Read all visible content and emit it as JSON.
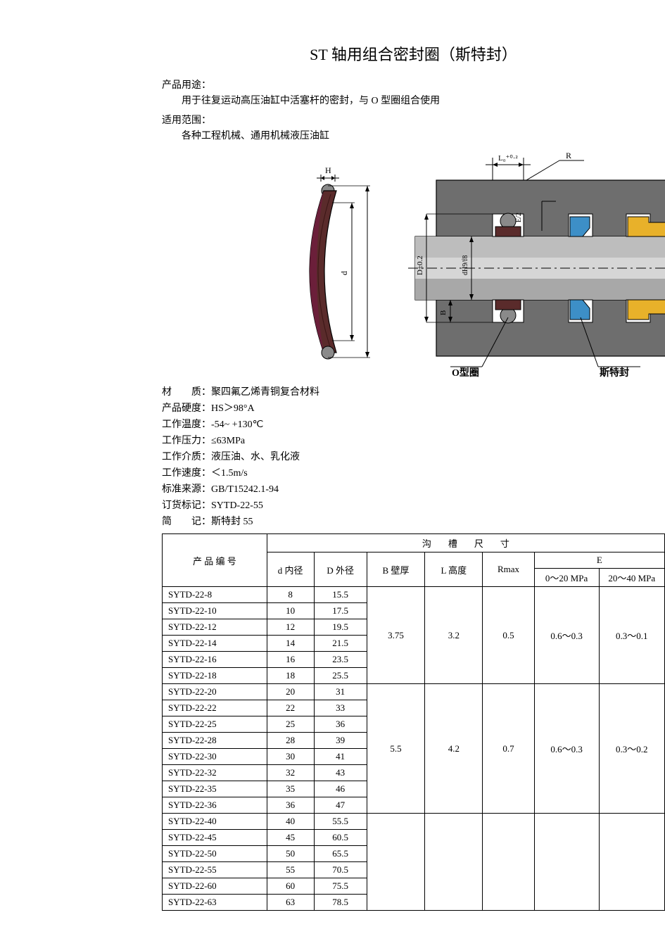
{
  "title": "ST 轴用组合密封圈（斯特封）",
  "sections": {
    "usage_label": "产品用途：",
    "usage_text": "用于往复运动高压油缸中活塞杆的密封，与 O 型圈组合使用",
    "scope_label": "适用范围：",
    "scope_text": "各种工程机械、通用机械液压油缸"
  },
  "diagram": {
    "callout_L": "L₀⁺⁰·²",
    "callout_R": "R",
    "callout_H": "H",
    "callout_d": "d",
    "callout_D": "D±0.2",
    "callout_dH9": "dH9/f8",
    "callout_B": "B",
    "callout_E2": "E/2",
    "label_oring": "O型圈",
    "label_st": "斯特封",
    "colors": {
      "housing": "#6e6e6e",
      "housing_dark": "#5a5a5a",
      "rod_light": "#c9c9c9",
      "rod_dark": "#a8a8a8",
      "seal_brown": "#5a2b2b",
      "seal_maroon": "#6b1f3a",
      "oring_gray": "#8a8a8a",
      "guide_blue": "#3d8fc7",
      "wiper_yellow": "#e8b12a",
      "outline": "#000000",
      "dim_line": "#000000",
      "bg": "#ffffff"
    }
  },
  "specs": [
    {
      "label": "材　　质：",
      "value": "聚四氟乙烯青铜复合材料"
    },
    {
      "label": "产品硬度：",
      "value": "HS＞98°A"
    },
    {
      "label": "工作温度：",
      "value": "-54~ +130℃"
    },
    {
      "label": "工作压力：",
      "value": "≤63MPa"
    },
    {
      "label": "工作介质：",
      "value": "液压油、水、乳化液"
    },
    {
      "label": "工作速度：",
      "value": "＜1.5m/s"
    },
    {
      "label": "标准来源：",
      "value": "GB/T15242.1-94"
    },
    {
      "label": "订货标记：",
      "value": "SYTD-22-55"
    },
    {
      "label": "简　　记：",
      "value": "斯特封 55"
    }
  ],
  "table": {
    "header_groove": "沟槽尺寸",
    "header_pn": "产 品 编 号",
    "header_d": "d 内径",
    "header_D": "D 外径",
    "header_B": "B 壁厚",
    "header_L": "L 高度",
    "header_R": "Rmax",
    "header_E": "E",
    "header_E1": "0～20 MPa",
    "header_E2": "20～40 MPa",
    "groups": [
      {
        "B": "3.75",
        "L": "3.2",
        "R": "0.5",
        "E1": "0.6～0.3",
        "E2": "0.3～0.1",
        "rows": [
          {
            "pn": "SYTD-22-8",
            "d": "8",
            "D": "15.5"
          },
          {
            "pn": "SYTD-22-10",
            "d": "10",
            "D": "17.5"
          },
          {
            "pn": "SYTD-22-12",
            "d": "12",
            "D": "19.5"
          },
          {
            "pn": "SYTD-22-14",
            "d": "14",
            "D": "21.5"
          },
          {
            "pn": "SYTD-22-16",
            "d": "16",
            "D": "23.5"
          },
          {
            "pn": "SYTD-22-18",
            "d": "18",
            "D": "25.5"
          }
        ]
      },
      {
        "B": "5.5",
        "L": "4.2",
        "R": "0.7",
        "E1": "0.6～0.3",
        "E2": "0.3～0.2",
        "rows": [
          {
            "pn": "SYTD-22-20",
            "d": "20",
            "D": "31"
          },
          {
            "pn": "SYTD-22-22",
            "d": "22",
            "D": "33"
          },
          {
            "pn": "SYTD-22-25",
            "d": "25",
            "D": "36"
          },
          {
            "pn": "SYTD-22-28",
            "d": "28",
            "D": "39"
          },
          {
            "pn": "SYTD-22-30",
            "d": "30",
            "D": "41"
          },
          {
            "pn": "SYTD-22-32",
            "d": "32",
            "D": "43"
          },
          {
            "pn": "SYTD-22-35",
            "d": "35",
            "D": "46"
          },
          {
            "pn": "SYTD-22-36",
            "d": "36",
            "D": "47"
          }
        ]
      },
      {
        "B": "",
        "L": "",
        "R": "",
        "E1": "",
        "E2": "",
        "rows": [
          {
            "pn": "SYTD-22-40",
            "d": "40",
            "D": "55.5"
          },
          {
            "pn": "SYTD-22-45",
            "d": "45",
            "D": "60.5"
          },
          {
            "pn": "SYTD-22-50",
            "d": "50",
            "D": "65.5"
          },
          {
            "pn": "SYTD-22-55",
            "d": "55",
            "D": "70.5"
          },
          {
            "pn": "SYTD-22-60",
            "d": "60",
            "D": "75.5"
          },
          {
            "pn": "SYTD-22-63",
            "d": "63",
            "D": "78.5"
          }
        ]
      }
    ]
  }
}
